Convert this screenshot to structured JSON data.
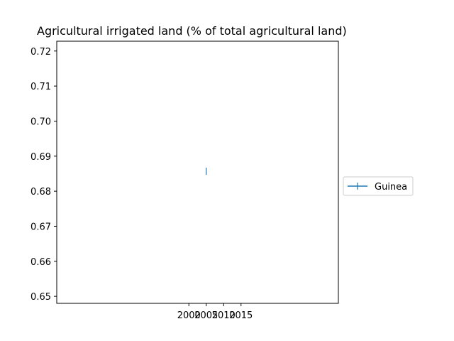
{
  "chart_data": {
    "type": "line",
    "title": "Agricultural irrigated land (% of total agricultural land)",
    "xlabel": "",
    "ylabel": "",
    "x_ticks": [
      "2000",
      "2005",
      "2010",
      "2015"
    ],
    "y_ticks": [
      "0.65",
      "0.66",
      "0.67",
      "0.68",
      "0.69",
      "0.70",
      "0.71",
      "0.72"
    ],
    "ylim": [
      0.648,
      0.7228
    ],
    "grid": false,
    "legend_position": "right",
    "series": [
      {
        "name": "Guinea",
        "color": "#1f77b4",
        "marker": "|",
        "x": [
          "2005"
        ],
        "values": [
          0.6857
        ]
      }
    ]
  }
}
